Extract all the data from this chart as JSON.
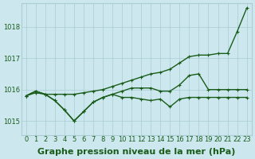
{
  "xlabel": "Graphe pression niveau de la mer (hPa)",
  "bg_color": "#cce8ee",
  "grid_color": "#aaccd4",
  "line_color": "#1a5c1a",
  "xlim": [
    -0.5,
    23.5
  ],
  "ylim": [
    1014.55,
    1018.75
  ],
  "yticks": [
    1015,
    1016,
    1017,
    1018
  ],
  "xticks": [
    0,
    1,
    2,
    3,
    4,
    5,
    6,
    7,
    8,
    9,
    10,
    11,
    12,
    13,
    14,
    15,
    16,
    17,
    18,
    19,
    20,
    21,
    22,
    23
  ],
  "line1_x": [
    0,
    1,
    2,
    3,
    4,
    5,
    6,
    7,
    8,
    9,
    10,
    11,
    12,
    13,
    14,
    15,
    16,
    17,
    18,
    19,
    20,
    21,
    22,
    23
  ],
  "line1_y": [
    1015.8,
    1015.95,
    1015.85,
    1015.65,
    1015.35,
    1015.0,
    1015.3,
    1015.6,
    1015.75,
    1015.85,
    1015.75,
    1015.75,
    1015.7,
    1015.65,
    1015.7,
    1015.45,
    1015.7,
    1015.75,
    1015.75,
    1015.75,
    1015.75,
    1015.75,
    1015.75,
    1015.75
  ],
  "line2_x": [
    0,
    1,
    2,
    3,
    4,
    5,
    6,
    7,
    8,
    9,
    10,
    11,
    12,
    13,
    14,
    15,
    16,
    17,
    18,
    19,
    20,
    21,
    22,
    23
  ],
  "line2_y": [
    1015.8,
    1015.95,
    1015.85,
    1015.65,
    1015.35,
    1015.0,
    1015.3,
    1015.6,
    1015.75,
    1015.85,
    1015.95,
    1016.05,
    1016.05,
    1016.05,
    1015.95,
    1015.95,
    1016.15,
    1016.45,
    1016.5,
    1016.0,
    1016.0,
    1016.0,
    1016.0,
    1016.0
  ],
  "line3_x": [
    0,
    1,
    2,
    3,
    4,
    5,
    6,
    7,
    8,
    9,
    10,
    11,
    12,
    13,
    14,
    15,
    16,
    17,
    18,
    19,
    20,
    21,
    22,
    23
  ],
  "line3_y": [
    1015.8,
    1015.9,
    1015.85,
    1015.85,
    1015.85,
    1015.85,
    1015.9,
    1015.95,
    1016.0,
    1016.1,
    1016.2,
    1016.3,
    1016.4,
    1016.5,
    1016.55,
    1016.65,
    1016.85,
    1017.05,
    1017.1,
    1017.1,
    1017.15,
    1017.15,
    1017.85,
    1018.6
  ],
  "marker": "+",
  "marker_size": 3.5,
  "linewidth": 1.0,
  "xlabel_fontsize": 8,
  "tick_fontsize": 6,
  "fig_width": 3.2,
  "fig_height": 2.0,
  "dpi": 100
}
